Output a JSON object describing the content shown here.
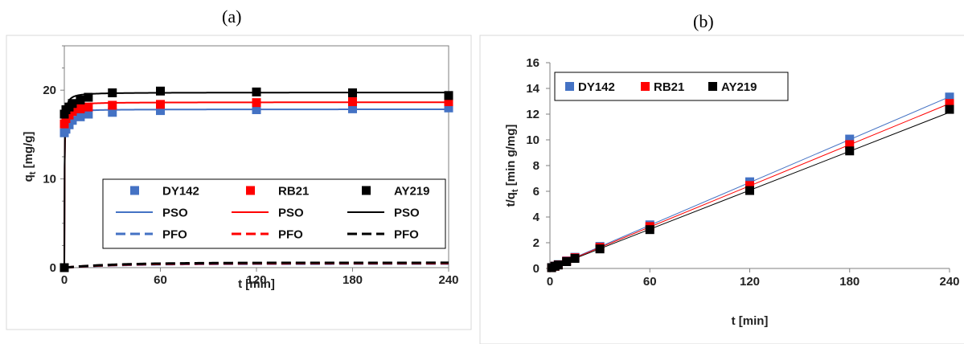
{
  "colors": {
    "DY142": "#4472c4",
    "RB21": "#ff0000",
    "AY219": "#000000",
    "frame": "#d9d9d9",
    "grid": "#7f7f7f"
  },
  "panel_labels": {
    "a": "(a)",
    "b": "(b)"
  },
  "chart_data": [
    {
      "id": "a",
      "type": "scatter",
      "xlabel": "t [min]",
      "ylabel": "q",
      "ylabel_sub": "t",
      "ylabel_units": " [mg/g]",
      "xlim": [
        0,
        240
      ],
      "ylim": [
        0,
        25
      ],
      "xticks": [
        0,
        60,
        120,
        180,
        240
      ],
      "yticks": [
        0,
        10,
        20
      ],
      "legend": {
        "position": "center-right",
        "rows": [
          [
            "DY142",
            "RB21",
            "AY219"
          ],
          [
            "PSO",
            "PSO",
            "PSO"
          ],
          [
            "PFO",
            "PFO",
            "PFO"
          ]
        ]
      },
      "series": [
        {
          "name": "DY142",
          "kind": "points",
          "color": "#4472c4",
          "x": [
            0,
            1,
            3,
            5,
            10,
            15,
            30,
            60,
            120,
            180,
            240
          ],
          "y": [
            15.2,
            15.6,
            16.1,
            16.6,
            17.0,
            17.3,
            17.5,
            17.7,
            17.8,
            17.9,
            18.0
          ]
        },
        {
          "name": "RB21",
          "kind": "points",
          "color": "#ff0000",
          "x": [
            0,
            1,
            3,
            5,
            10,
            15,
            30,
            60,
            120,
            180,
            240
          ],
          "y": [
            16.2,
            16.8,
            17.2,
            17.6,
            17.9,
            18.1,
            18.3,
            18.4,
            18.6,
            18.7,
            18.7
          ]
        },
        {
          "name": "AY219",
          "kind": "points",
          "color": "#000000",
          "x": [
            0,
            1,
            3,
            5,
            10,
            15,
            30,
            60,
            120,
            180,
            240
          ],
          "y": [
            17.3,
            17.8,
            18.1,
            18.5,
            18.9,
            19.2,
            19.7,
            19.9,
            19.8,
            19.7,
            19.4
          ]
        },
        {
          "name": "PSO",
          "kind": "pso",
          "color": "#4472c4",
          "qe": 17.85,
          "k": 0.5
        },
        {
          "name": "PSO",
          "kind": "pso",
          "color": "#ff0000",
          "qe": 18.65,
          "k": 0.4
        },
        {
          "name": "PSO",
          "kind": "pso",
          "color": "#000000",
          "qe": 19.75,
          "k": 0.35
        },
        {
          "name": "PFO",
          "kind": "pfo",
          "color": "#4472c4",
          "qe": 0.45,
          "k": 0.03
        },
        {
          "name": "PFO",
          "kind": "pfo",
          "color": "#ff0000",
          "qe": 0.5,
          "k": 0.03
        },
        {
          "name": "PFO",
          "kind": "pfo",
          "color": "#000000",
          "qe": 0.55,
          "k": 0.03
        }
      ]
    },
    {
      "id": "b",
      "type": "scatter",
      "xlabel": "t [min]",
      "ylabel": "t/q",
      "ylabel_sub": "t",
      "ylabel_units": " [min g/mg]",
      "xlim": [
        0,
        240
      ],
      "ylim": [
        0,
        16
      ],
      "xticks": [
        0,
        60,
        120,
        180,
        240
      ],
      "yticks": [
        0,
        2,
        4,
        6,
        8,
        10,
        12,
        14,
        16
      ],
      "legend": {
        "position": "top-left",
        "rows": [
          [
            "DY142",
            "RB21",
            "AY219"
          ]
        ]
      },
      "series": [
        {
          "name": "DY142",
          "color": "#4472c4",
          "x": [
            1,
            3,
            5,
            10,
            15,
            30,
            60,
            120,
            180,
            240
          ],
          "y": [
            0.07,
            0.19,
            0.3,
            0.59,
            0.87,
            1.71,
            3.39,
            6.74,
            10.06,
            13.33
          ],
          "fit": [
            0.028,
            0.0555
          ]
        },
        {
          "name": "RB21",
          "color": "#ff0000",
          "x": [
            1,
            3,
            5,
            10,
            15,
            30,
            60,
            120,
            180,
            240
          ],
          "y": [
            0.06,
            0.17,
            0.28,
            0.56,
            0.83,
            1.64,
            3.26,
            6.45,
            9.63,
            12.83
          ],
          "fit": [
            0.027,
            0.0533
          ]
        },
        {
          "name": "AY219",
          "color": "#000000",
          "x": [
            1,
            3,
            5,
            10,
            15,
            30,
            60,
            120,
            180,
            240
          ],
          "y": [
            0.06,
            0.17,
            0.27,
            0.53,
            0.78,
            1.52,
            3.02,
            6.06,
            9.14,
            12.37
          ],
          "fit": [
            0.02,
            0.0505
          ]
        }
      ]
    }
  ]
}
